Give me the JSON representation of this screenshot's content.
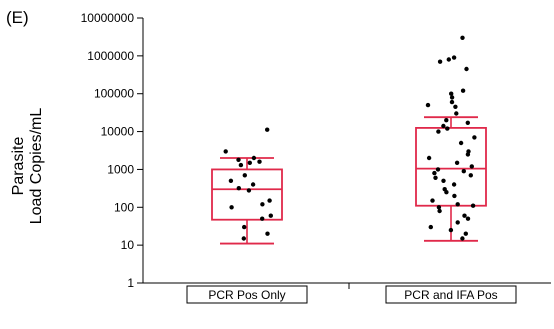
{
  "panel_label": "(E)",
  "chart_data": {
    "type": "box",
    "scale": "log",
    "ylim": [
      1,
      10000000
    ],
    "yticks": [
      "1",
      "10",
      "100",
      "1000",
      "10000",
      "100000",
      "1000000",
      "10000000"
    ],
    "ylabel_line1": "Parasite",
    "ylabel_line2": "Load Copies/mL",
    "box_color": "#e0294a",
    "point_color": "#000000",
    "categories": [
      "PCR Pos Only",
      "PCR and IFA Pos"
    ],
    "boxes": [
      {
        "category": "PCR Pos Only",
        "whisker_low": 11,
        "q1": 47,
        "median": 300,
        "q3": 1000,
        "whisker_high": 2000,
        "points": [
          11200,
          3000,
          1500,
          1300,
          700,
          400,
          500,
          320,
          280,
          150,
          120,
          100,
          60,
          50,
          30,
          20,
          15,
          2000,
          1800,
          1600
        ]
      },
      {
        "category": "PCR and IFA Pos",
        "whisker_low": 13,
        "q1": 110,
        "median": 1050,
        "q3": 12500,
        "whisker_high": 24000,
        "points": [
          3000000,
          900000,
          800000,
          700000,
          450000,
          120000,
          100000,
          80000,
          60000,
          50000,
          45000,
          30000,
          20000,
          17000,
          14000,
          12000,
          10000,
          7000,
          5000,
          3000,
          2500,
          2000,
          1500,
          1200,
          1000,
          900,
          800,
          700,
          600,
          500,
          400,
          300,
          250,
          200,
          150,
          120,
          110,
          100,
          80,
          60,
          50,
          40,
          30,
          25,
          20,
          15
        ]
      }
    ]
  }
}
